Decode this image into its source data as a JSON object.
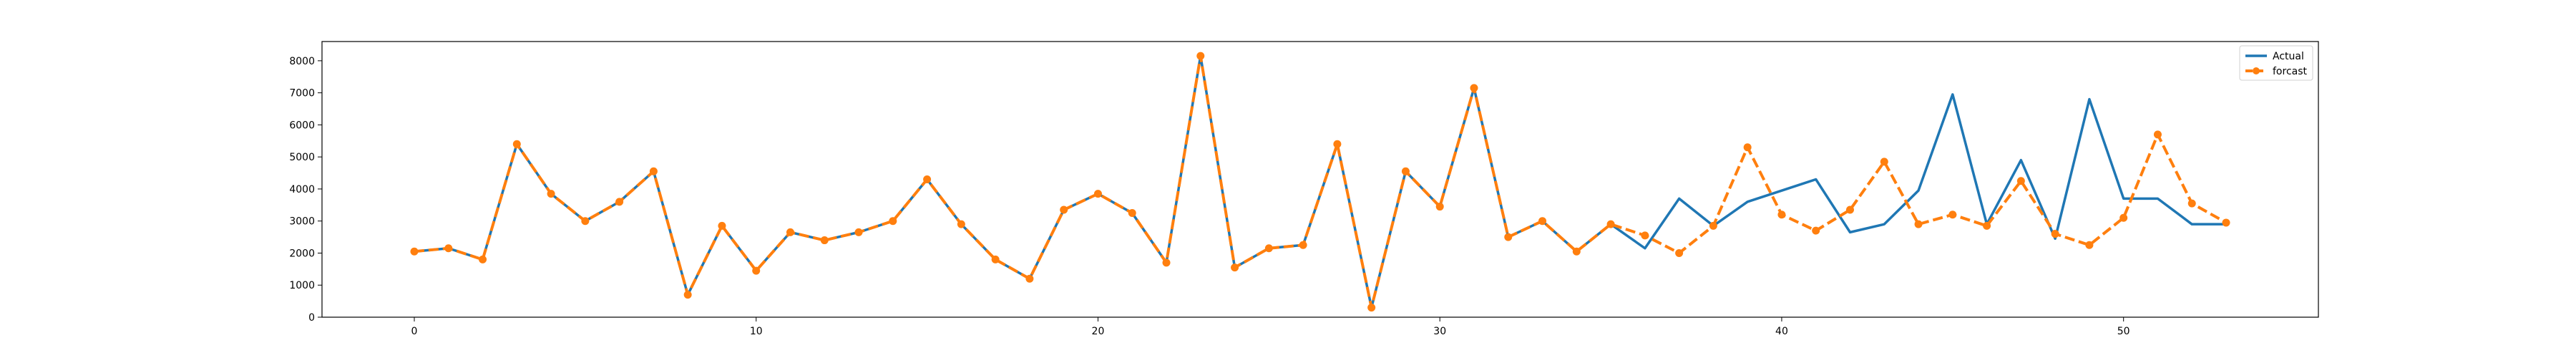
{
  "chart_data": {
    "type": "line",
    "title": "",
    "xlabel": "",
    "ylabel": "",
    "xlim": [
      -2.7,
      55.7
    ],
    "ylim": [
      0,
      8600
    ],
    "xticks": [
      0,
      10,
      20,
      30,
      40,
      50
    ],
    "yticks": [
      0,
      1000,
      2000,
      3000,
      4000,
      5000,
      6000,
      7000,
      8000
    ],
    "grid": false,
    "legend_position": "top-right",
    "colors": {
      "actual": "#1f77b4",
      "forecast": "#ff7f0e"
    },
    "x": [
      0,
      1,
      2,
      3,
      4,
      5,
      6,
      7,
      8,
      9,
      10,
      11,
      12,
      13,
      14,
      15,
      16,
      17,
      18,
      19,
      20,
      21,
      22,
      23,
      24,
      25,
      26,
      27,
      28,
      29,
      30,
      31,
      32,
      33,
      34,
      35,
      36,
      37,
      38,
      39,
      40,
      41,
      42,
      43,
      44,
      45,
      46,
      47,
      48,
      49,
      50,
      51,
      52,
      53
    ],
    "series": [
      {
        "name": "Actual",
        "style": "solid",
        "marker": "none",
        "color": "#1f77b4",
        "values": [
          2050,
          2150,
          1800,
          5400,
          3850,
          3000,
          3600,
          4550,
          700,
          2850,
          1450,
          2650,
          2400,
          2650,
          3000,
          4300,
          2900,
          1800,
          1200,
          3350,
          3850,
          3250,
          1700,
          8150,
          1550,
          2150,
          2250,
          5400,
          300,
          4550,
          3450,
          7150,
          2500,
          3000,
          2050,
          2900,
          2150,
          3700,
          2850,
          3600,
          3950,
          4300,
          2650,
          2900,
          3950,
          6950,
          2900,
          4900,
          2450,
          6800,
          3700,
          3700,
          2900,
          2900
        ]
      },
      {
        "name": "forcast",
        "style": "dashed",
        "marker": "circle",
        "color": "#ff7f0e",
        "values": [
          2050,
          2150,
          1800,
          5400,
          3850,
          3000,
          3600,
          4550,
          700,
          2850,
          1450,
          2650,
          2400,
          2650,
          3000,
          4300,
          2900,
          1800,
          1200,
          3350,
          3850,
          3250,
          1700,
          8150,
          1550,
          2150,
          2250,
          5400,
          300,
          4550,
          3450,
          7150,
          2500,
          3000,
          2050,
          2900,
          2550,
          2000,
          2850,
          5300,
          3200,
          2700,
          3350,
          4850,
          2900,
          3200,
          2850,
          4250,
          2600,
          2250,
          3100,
          5700,
          3550,
          2950
        ]
      }
    ]
  }
}
